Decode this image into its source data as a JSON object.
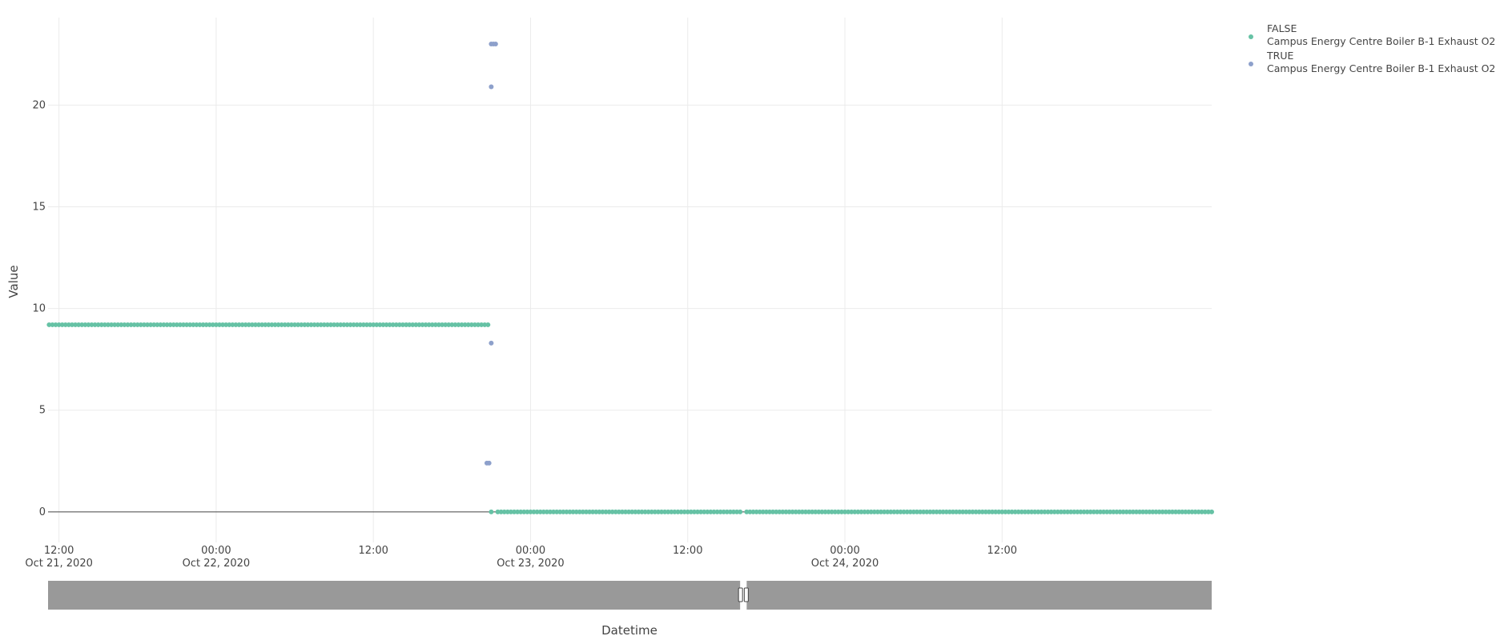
{
  "chart_data": {
    "type": "scatter",
    "xlabel": "Datetime",
    "ylabel": "Value",
    "x_range": [
      "2020-10-21T11:10",
      "2020-10-25T04:00"
    ],
    "y_range": [
      -1.5,
      24.3
    ],
    "y_ticks": [
      0,
      5,
      10,
      15,
      20
    ],
    "x_ticks": [
      {
        "t": "2020-10-21T12:00",
        "line1": "12:00",
        "line2": "Oct 21, 2020"
      },
      {
        "t": "2020-10-22T00:00",
        "line1": "00:00",
        "line2": "Oct 22, 2020"
      },
      {
        "t": "2020-10-22T12:00",
        "line1": "12:00",
        "line2": ""
      },
      {
        "t": "2020-10-23T00:00",
        "line1": "00:00",
        "line2": "Oct 23, 2020"
      },
      {
        "t": "2020-10-23T12:00",
        "line1": "12:00",
        "line2": ""
      },
      {
        "t": "2020-10-24T00:00",
        "line1": "00:00",
        "line2": "Oct 24, 2020"
      },
      {
        "t": "2020-10-24T12:00",
        "line1": "12:00",
        "line2": ""
      }
    ],
    "grid": true,
    "legend_position": "top-right",
    "series": [
      {
        "name": "FALSE",
        "label": "Campus Energy Centre Boiler B-1 Exhaust O2",
        "color": "#66c2a5",
        "segments": [
          {
            "start": "2020-10-21T11:15",
            "end": "2020-10-22T20:45",
            "value": 9.2,
            "step_minutes": 15
          },
          {
            "start": "2020-10-22T21:00",
            "end": "2020-10-22T21:00",
            "value": 0.0,
            "step_minutes": 15
          },
          {
            "start": "2020-10-22T21:30",
            "end": "2020-10-23T16:00",
            "value": 0.0,
            "step_minutes": 15
          },
          {
            "start": "2020-10-23T16:30",
            "end": "2020-10-25T04:00",
            "value": 0.0,
            "step_minutes": 15
          }
        ]
      },
      {
        "name": "TRUE",
        "label": "Campus Energy Centre Boiler B-1 Exhaust O2",
        "color": "#8da0cb",
        "points": [
          {
            "x": "2020-10-22T20:40",
            "y": 2.4
          },
          {
            "x": "2020-10-22T20:50",
            "y": 2.4
          },
          {
            "x": "2020-10-22T21:00",
            "y": 23.0
          },
          {
            "x": "2020-10-22T21:00",
            "y": 20.9
          },
          {
            "x": "2020-10-22T21:00",
            "y": 8.3
          },
          {
            "x": "2020-10-22T21:10",
            "y": 23.0
          },
          {
            "x": "2020-10-22T21:20",
            "y": 23.0
          }
        ]
      }
    ],
    "range_slider": {
      "fill_color": "#999999",
      "gap_start": "2020-10-23T16:00",
      "gap_end": "2020-10-23T16:30"
    }
  }
}
